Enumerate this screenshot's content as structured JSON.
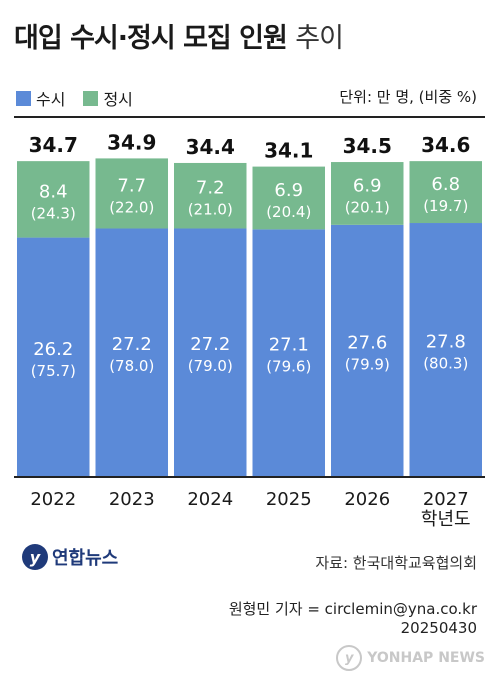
{
  "header": {
    "title_bold": "대입 수시·정시 모집 인원",
    "title_light": "추이",
    "unit": "단위: 만 명, (비중 %)"
  },
  "legend": {
    "susi_label": "수시",
    "jeongsi_label": "정시"
  },
  "colors": {
    "susi": "#5b8ad8",
    "jeongsi": "#77b98f"
  },
  "chart_data": {
    "type": "bar",
    "stacked": true,
    "categories": [
      "2022",
      "2023",
      "2024",
      "2025",
      "2026",
      "2027"
    ],
    "category_labels": [
      "2022",
      "2023",
      "2024",
      "2025",
      "2026",
      "2027\n학년도"
    ],
    "totals": [
      34.7,
      34.9,
      34.4,
      34.1,
      34.5,
      34.6
    ],
    "series": [
      {
        "name": "수시",
        "values": [
          26.2,
          27.2,
          27.2,
          27.1,
          27.6,
          27.8
        ],
        "shares": [
          "(75.7)",
          "(78.0)",
          "(79.0)",
          "(79.6)",
          "(79.9)",
          "(80.3)"
        ]
      },
      {
        "name": "정시",
        "values": [
          8.4,
          7.7,
          7.2,
          6.9,
          6.9,
          6.8
        ],
        "shares": [
          "(24.3)",
          "(22.0)",
          "(21.0)",
          "(20.4)",
          "(20.1)",
          "(19.7)"
        ]
      }
    ]
  },
  "footer": {
    "logo_text": "연합뉴스",
    "source": "자료: 한국대학교육협의회",
    "reporter": "원형민 기자 = circlemin@yna.co.kr",
    "date": "20250430",
    "watermark": "YONHAP NEWS"
  }
}
